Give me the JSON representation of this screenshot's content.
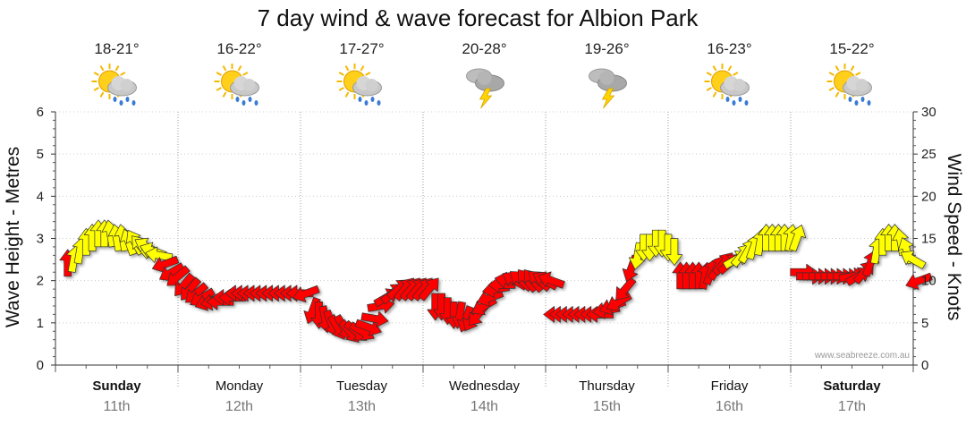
{
  "chart_data": {
    "type": "line",
    "title": "7 day wind & wave forecast for Albion Park",
    "ylabel_left": "Wave Height - Metres",
    "ylabel_right": "Wind Speed - Knots",
    "ylim_left": [
      0,
      6
    ],
    "ylim_right": [
      0,
      30
    ],
    "yticks_left": [
      "0",
      "1",
      "2",
      "3",
      "4",
      "5",
      "6"
    ],
    "yticks_right": [
      "0",
      "5",
      "10",
      "15",
      "20",
      "25",
      "30"
    ],
    "grid": true,
    "credit": "www.seabreeze.com.au",
    "days": [
      {
        "name": "Sunday",
        "date": "11th",
        "temp": "18-21°",
        "icon": "sun-cloud-rain-icon",
        "bold": true
      },
      {
        "name": "Monday",
        "date": "12th",
        "temp": "16-22°",
        "icon": "sun-cloud-rain-icon",
        "bold": false
      },
      {
        "name": "Tuesday",
        "date": "13th",
        "temp": "17-27°",
        "icon": "sun-cloud-rain-icon",
        "bold": false
      },
      {
        "name": "Wednesday",
        "date": "14th",
        "temp": "20-28°",
        "icon": "storm-cloud-icon",
        "bold": false
      },
      {
        "name": "Thursday",
        "date": "15th",
        "temp": "19-26°",
        "icon": "storm-cloud-icon",
        "bold": false
      },
      {
        "name": "Friday",
        "date": "16th",
        "temp": "16-23°",
        "icon": "sun-cloud-rain-icon",
        "bold": false
      },
      {
        "name": "Saturday",
        "date": "17th",
        "temp": "15-22°",
        "icon": "sun-cloud-rain-icon",
        "bold": true
      }
    ],
    "colors": {
      "low_wind": "#ff0000",
      "high_wind": "#ffff00",
      "arrow_outline": "#333333",
      "grid": "#999999"
    },
    "wind_series": {
      "name": "Wind Speed (knots)",
      "x_day": [
        0,
        0.05,
        0.1,
        0.15,
        0.2,
        0.25,
        0.3,
        0.35,
        0.4,
        0.45,
        0.5,
        0.55,
        0.6,
        0.65,
        0.7,
        0.75,
        0.8,
        0.85,
        0.9,
        0.95,
        1.0,
        1.05,
        1.1,
        1.15,
        1.2,
        1.25,
        1.3,
        1.35,
        1.4,
        1.45,
        1.5,
        1.55,
        1.6,
        1.65,
        1.7,
        1.75,
        1.8,
        1.85,
        1.9,
        1.95,
        2.0,
        2.05,
        2.1,
        2.15,
        2.2,
        2.25,
        2.3,
        2.35,
        2.4,
        2.45,
        2.5,
        2.55,
        2.6,
        2.65,
        2.7,
        2.75,
        2.8,
        2.85,
        2.9,
        2.95,
        3.0,
        3.05,
        3.1,
        3.15,
        3.2,
        3.25,
        3.3,
        3.35,
        3.4,
        3.45,
        3.5,
        3.55,
        3.6,
        3.65,
        3.7,
        3.75,
        3.8,
        3.85,
        3.9,
        3.95,
        4.0,
        4.05,
        4.1,
        4.15,
        4.2,
        4.25,
        4.3,
        4.35,
        4.4,
        4.45,
        4.5,
        4.55,
        4.6,
        4.65,
        4.7,
        4.75,
        4.8,
        4.85,
        4.9,
        4.95,
        5.0,
        5.05,
        5.1,
        5.15,
        5.2,
        5.25,
        5.3,
        5.35,
        5.4,
        5.45,
        5.5,
        5.55,
        5.6,
        5.65,
        5.7,
        5.75,
        5.8,
        5.85,
        5.9,
        5.95,
        6.0,
        6.05,
        6.1,
        6.15,
        6.2,
        6.25,
        6.3,
        6.35,
        6.4,
        6.45,
        6.5,
        6.55,
        6.6,
        6.65,
        6.7,
        6.75,
        6.8,
        6.85,
        6.9,
        6.95
      ],
      "knots": [
        12,
        12.5,
        13.5,
        14.5,
        15,
        15.5,
        15.5,
        15.5,
        15,
        15,
        14.5,
        14.5,
        14,
        14,
        13.5,
        13,
        12,
        11,
        10.5,
        9.5,
        9,
        8.5,
        8,
        7.5,
        7.5,
        7.5,
        8,
        8,
        8.5,
        8.5,
        8.5,
        8.5,
        8.5,
        8.5,
        8.5,
        8.5,
        8.5,
        8.5,
        8.5,
        8.5,
        6.5,
        6,
        5.5,
        5,
        4.5,
        4.5,
        4,
        4,
        4,
        4.5,
        5.5,
        7,
        8,
        8.5,
        9,
        9,
        9,
        9,
        9,
        9,
        7,
        7,
        6.5,
        6,
        6,
        5.5,
        5.5,
        6,
        7,
        8,
        9,
        9.5,
        10,
        10,
        10,
        10,
        10,
        10,
        10,
        10,
        6,
        6,
        6,
        6,
        6,
        6,
        6,
        6,
        6.5,
        7,
        7.5,
        9,
        11.5,
        13,
        14,
        14,
        14.5,
        14.5,
        14,
        13.5,
        10.5,
        10.5,
        10.5,
        10.5,
        10.5,
        11,
        11.5,
        12,
        12,
        12.5,
        13,
        13.5,
        14,
        14.5,
        15,
        15,
        15,
        15,
        15,
        15,
        11,
        10.5,
        10.5,
        10.5,
        10.5,
        10.5,
        10.5,
        10.5,
        10.5,
        10.5,
        11,
        12,
        13.5,
        14.5,
        15,
        15,
        14.5,
        13.5,
        12.5,
        10
      ],
      "direction_deg": [
        0,
        10,
        10,
        0,
        0,
        0,
        0,
        350,
        350,
        350,
        340,
        330,
        320,
        300,
        290,
        280,
        250,
        240,
        230,
        220,
        220,
        230,
        240,
        250,
        260,
        270,
        270,
        270,
        270,
        270,
        270,
        270,
        270,
        270,
        270,
        270,
        270,
        270,
        270,
        250,
        200,
        180,
        170,
        160,
        150,
        150,
        140,
        130,
        120,
        110,
        100,
        80,
        60,
        50,
        50,
        40,
        40,
        40,
        40,
        40,
        180,
        180,
        180,
        180,
        190,
        200,
        210,
        220,
        240,
        250,
        260,
        270,
        280,
        300,
        310,
        320,
        320,
        310,
        300,
        290,
        270,
        270,
        270,
        270,
        270,
        270,
        270,
        270,
        260,
        250,
        240,
        220,
        200,
        190,
        180,
        180,
        180,
        180,
        180,
        180,
        0,
        0,
        0,
        0,
        10,
        20,
        30,
        40,
        50,
        60,
        40,
        30,
        20,
        10,
        0,
        0,
        0,
        0,
        10,
        20,
        90,
        90,
        90,
        90,
        90,
        90,
        90,
        90,
        80,
        60,
        40,
        20,
        10,
        0,
        0,
        0,
        350,
        340,
        300,
        250
      ]
    }
  }
}
